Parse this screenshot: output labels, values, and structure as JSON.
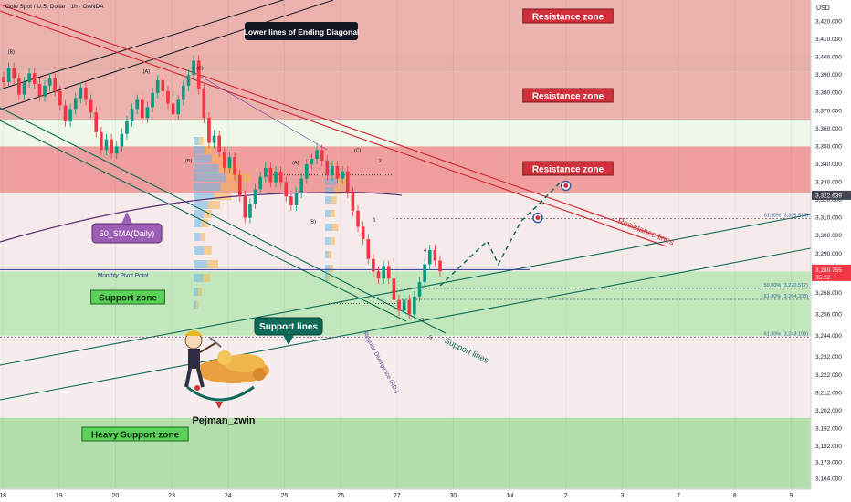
{
  "header": {
    "symbol_title": "Gold Spot / U.S. Dollar · 1h · OANDA"
  },
  "axis": {
    "currency": "USD"
  },
  "chart_data": {
    "type": "candlestick",
    "ylim": [
      3158,
      3432
    ],
    "y_ticks": [
      3164,
      3173,
      3182,
      3192,
      3202,
      3212,
      3222,
      3232,
      3244,
      3256,
      3268,
      3280,
      3290,
      3300,
      3310,
      3320,
      3330,
      3340,
      3350,
      3360,
      3370,
      3380,
      3390,
      3400,
      3410,
      3420
    ],
    "x_ticks": [
      {
        "label": "18",
        "x": 18
      },
      {
        "label": "19",
        "x": 19
      },
      {
        "label": "20",
        "x": 20
      },
      {
        "label": "23",
        "x": 21
      },
      {
        "label": "24",
        "x": 22
      },
      {
        "label": "25",
        "x": 23
      },
      {
        "label": "26",
        "x": 24
      },
      {
        "label": "27",
        "x": 25
      },
      {
        "label": "30",
        "x": 26
      },
      {
        "label": "Jul",
        "x": 27
      },
      {
        "label": "2",
        "x": 28
      },
      {
        "label": "3",
        "x": 29
      },
      {
        "label": "7",
        "x": 30
      },
      {
        "label": "8",
        "x": 31
      },
      {
        "label": "9",
        "x": 32
      }
    ],
    "xlim": [
      17.95,
      32.35
    ],
    "current_price": {
      "value": "3,280.755",
      "countdown": "35:22",
      "color": "#f23645"
    },
    "marker_price": {
      "value": "3,322.639",
      "color": "#434651"
    },
    "zones": [
      {
        "label": "Resistance zone",
        "from": 3392,
        "to": 3432,
        "color": "#e8a5a0"
      },
      {
        "label": "Resistance zone",
        "from": 3365,
        "to": 3392,
        "color": "#e8a5a0"
      },
      {
        "label": "Resistance zone",
        "from": 3324,
        "to": 3350,
        "color": "#ec8e8c"
      },
      {
        "label": "Support zone",
        "from": 3244,
        "to": 3280,
        "color": "#b7e3b0"
      },
      {
        "label": "Heavy Support zone",
        "from": 3158,
        "to": 3198,
        "color": "#a5d99e"
      }
    ],
    "light_bands": [
      {
        "from": 3392,
        "to": 3402,
        "color": "#e5f5df"
      },
      {
        "from": 3350,
        "to": 3365,
        "color": "#eef7e8"
      },
      {
        "from": 3280,
        "to": 3324,
        "color": "#f6eaea"
      },
      {
        "from": 3198,
        "to": 3244,
        "color": "#f7eded"
      }
    ],
    "levels": [
      {
        "label": "61.80% (3,309.520)",
        "value": 3309.52
      },
      {
        "label": "50.00% (3,270.517)",
        "value": 3270.517
      },
      {
        "label": "61.80% (3,264.338)",
        "value": 3264.338
      },
      {
        "label": "61.80% (3,243.199)",
        "value": 3243.199
      }
    ],
    "pivot": {
      "label": "Monthly Pivot Point",
      "value": 3281
    },
    "annotations": {
      "ending_diagonal": "Lower lines of Ending Diagonal",
      "sma": "50_SMA(Daily)",
      "support_lines_box": "Support lines",
      "support_lines_tag": "Support lines",
      "resistance_lines_tag": "Resistance lines",
      "divergence": "Regular Divergence (RD-)",
      "author": "Pejman_zwin"
    },
    "wave_labels": [
      {
        "t": "(B)",
        "x": 18.15,
        "y": 3402
      },
      {
        "t": "(A)",
        "x": 20.55,
        "y": 3391
      },
      {
        "t": "(C)",
        "x": 21.5,
        "y": 3393
      },
      {
        "t": "(B)",
        "x": 21.3,
        "y": 3341
      },
      {
        "t": "(A)",
        "x": 23.2,
        "y": 3340
      },
      {
        "t": "(B)",
        "x": 23.5,
        "y": 3307
      },
      {
        "t": "(C)",
        "x": 24.3,
        "y": 3347
      },
      {
        "t": "2",
        "x": 24.7,
        "y": 3341
      },
      {
        "t": "1",
        "x": 24.6,
        "y": 3308
      },
      {
        "t": "3",
        "x": 25.45,
        "y": 3252
      },
      {
        "t": "4",
        "x": 25.5,
        "y": 3291
      },
      {
        "t": "5",
        "x": 25.6,
        "y": 3242
      }
    ],
    "candles": [
      [
        3389,
        3386
      ],
      [
        3386,
        3394
      ],
      [
        3394,
        3388
      ],
      [
        3388,
        3379
      ],
      [
        3379,
        3386
      ],
      [
        3386,
        3391
      ],
      [
        3391,
        3385
      ],
      [
        3385,
        3378
      ],
      [
        3378,
        3384
      ],
      [
        3384,
        3388
      ],
      [
        3388,
        3381
      ],
      [
        3381,
        3373
      ],
      [
        3373,
        3364
      ],
      [
        3364,
        3371
      ],
      [
        3371,
        3377
      ],
      [
        3377,
        3383
      ],
      [
        3383,
        3376
      ],
      [
        3376,
        3369
      ],
      [
        3369,
        3358
      ],
      [
        3358,
        3348
      ],
      [
        3348,
        3354
      ],
      [
        3354,
        3346
      ],
      [
        3346,
        3350
      ],
      [
        3350,
        3357
      ],
      [
        3357,
        3364
      ],
      [
        3364,
        3371
      ],
      [
        3371,
        3376
      ],
      [
        3376,
        3366
      ],
      [
        3366,
        3372
      ],
      [
        3372,
        3380
      ],
      [
        3380,
        3387
      ],
      [
        3387,
        3381
      ],
      [
        3381,
        3374
      ],
      [
        3374,
        3368
      ],
      [
        3368,
        3376
      ],
      [
        3376,
        3384
      ],
      [
        3384,
        3390
      ],
      [
        3390,
        3398
      ],
      [
        3398,
        3382
      ],
      [
        3382,
        3366
      ],
      [
        3366,
        3352
      ],
      [
        3352,
        3356
      ],
      [
        3356,
        3347
      ],
      [
        3347,
        3338
      ],
      [
        3338,
        3344
      ],
      [
        3344,
        3334
      ],
      [
        3334,
        3322
      ],
      [
        3322,
        3310
      ],
      [
        3310,
        3318
      ],
      [
        3318,
        3326
      ],
      [
        3326,
        3333
      ],
      [
        3333,
        3338
      ],
      [
        3338,
        3330
      ],
      [
        3330,
        3336
      ],
      [
        3336,
        3330
      ],
      [
        3330,
        3322
      ],
      [
        3322,
        3317
      ],
      [
        3317,
        3324
      ],
      [
        3324,
        3332
      ],
      [
        3332,
        3340
      ],
      [
        3340,
        3343
      ],
      [
        3343,
        3348
      ],
      [
        3348,
        3342
      ],
      [
        3342,
        3334
      ],
      [
        3334,
        3339
      ],
      [
        3339,
        3332
      ],
      [
        3332,
        3336
      ],
      [
        3336,
        3324
      ],
      [
        3324,
        3314
      ],
      [
        3314,
        3305
      ],
      [
        3305,
        3298
      ],
      [
        3298,
        3287
      ],
      [
        3287,
        3280
      ],
      [
        3280,
        3276
      ],
      [
        3276,
        3283
      ],
      [
        3283,
        3276
      ],
      [
        3276,
        3264
      ],
      [
        3264,
        3258
      ],
      [
        3258,
        3264
      ],
      [
        3264,
        3256
      ],
      [
        3256,
        3266
      ],
      [
        3266,
        3274
      ],
      [
        3274,
        3284
      ],
      [
        3284,
        3292
      ],
      [
        3292,
        3286
      ],
      [
        3286,
        3280
      ]
    ],
    "projection": [
      [
        26.25,
        3270
      ],
      [
        26.6,
        3297
      ],
      [
        26.8,
        3284
      ],
      [
        27.2,
        3308
      ],
      [
        27.5,
        3317
      ],
      [
        27.9,
        3330
      ]
    ],
    "target_points": [
      [
        27.5,
        3310
      ],
      [
        28.0,
        3328
      ]
    ]
  }
}
